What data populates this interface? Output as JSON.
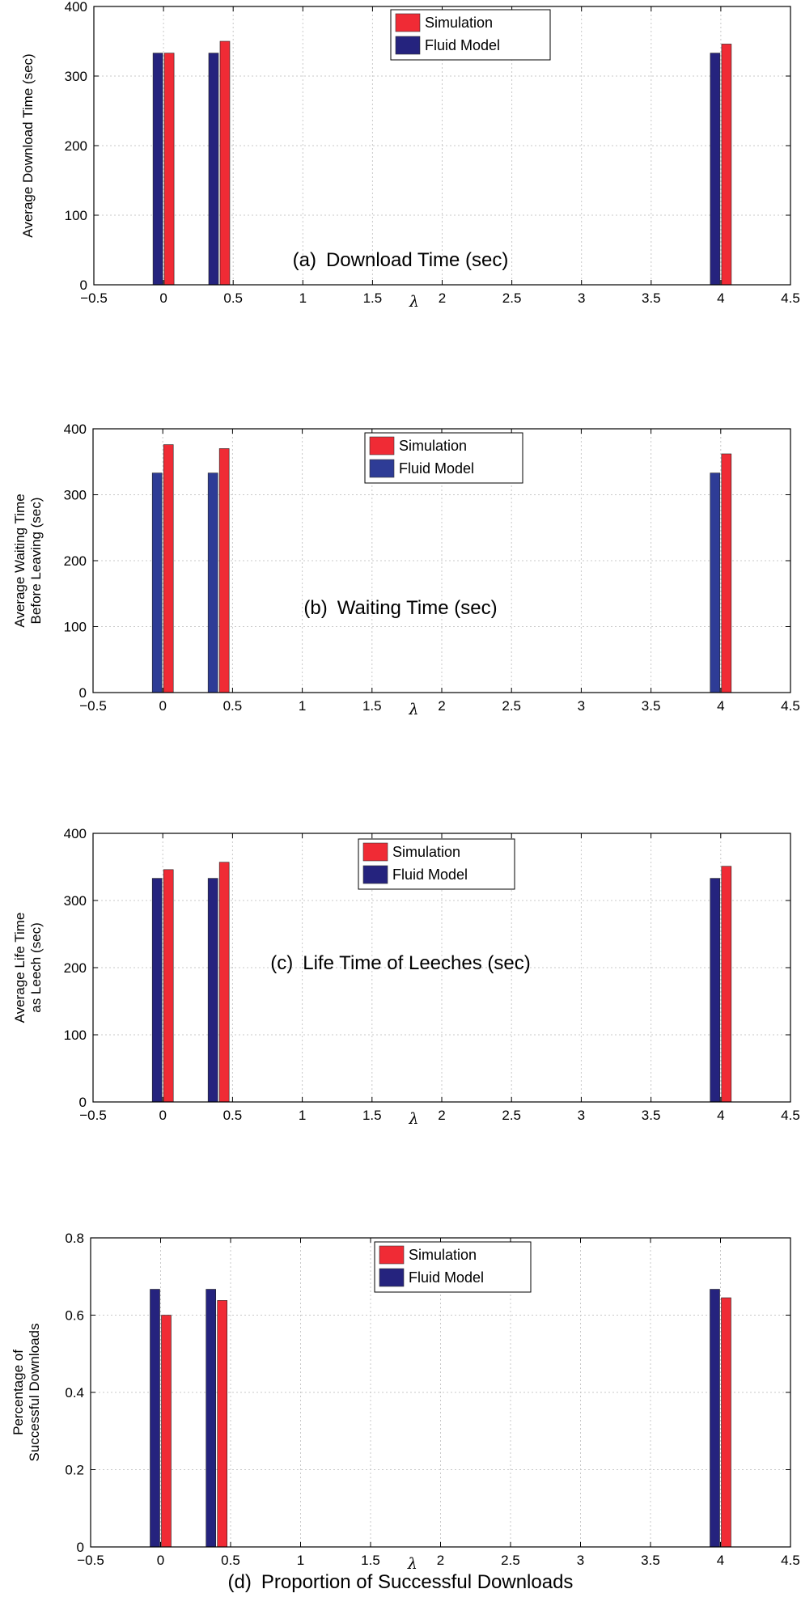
{
  "colors": {
    "simulation": "#f02b35",
    "fluid_model_dark": "#25237e",
    "fluid_model_blue": "#2e3c96",
    "grid": "#c8c8c8"
  },
  "chart_data": [
    {
      "type": "bar",
      "x": [
        0,
        0.4,
        4
      ],
      "xlabel": "λ",
      "ylabel": "Average Download Time (sec)",
      "ylabel_lines": [
        "Average Download Time (sec)"
      ],
      "xlim": [
        -0.5,
        4.5
      ],
      "ylim": [
        0,
        400
      ],
      "xticks": [
        "−0.5",
        "0",
        "0.5",
        "1",
        "1.5",
        "2",
        "2.5",
        "3",
        "3.5",
        "4",
        "4.5"
      ],
      "yticks": [
        "0",
        "100",
        "200",
        "300",
        "400"
      ],
      "grid": true,
      "legend": "top-center",
      "series": [
        {
          "name": "Fluid Model",
          "color_key": "fluid_model_dark",
          "values": [
            333,
            333,
            333
          ]
        },
        {
          "name": "Simulation",
          "color_key": "simulation",
          "values": [
            333,
            350,
            346
          ]
        }
      ],
      "legend_order": [
        "Simulation",
        "Fluid Model"
      ],
      "caption_tag": "(a)",
      "caption": "Download Time (sec)"
    },
    {
      "type": "bar",
      "x": [
        0,
        0.4,
        4
      ],
      "xlabel": "λ",
      "ylabel": "Average Waiting Time Before Leaving (sec)",
      "ylabel_lines": [
        "Average Waiting Time",
        "Before Leaving (sec)"
      ],
      "xlim": [
        -0.5,
        4.5
      ],
      "ylim": [
        0,
        400
      ],
      "xticks": [
        "−0.5",
        "0",
        "0.5",
        "1",
        "1.5",
        "2",
        "2.5",
        "3",
        "3.5",
        "4",
        "4.5"
      ],
      "yticks": [
        "0",
        "100",
        "200",
        "300",
        "400"
      ],
      "grid": true,
      "legend": "top-center",
      "series": [
        {
          "name": "Fluid Model",
          "color_key": "fluid_model_blue",
          "values": [
            333,
            333,
            333
          ]
        },
        {
          "name": "Simulation",
          "color_key": "simulation",
          "values": [
            376,
            370,
            362
          ]
        }
      ],
      "legend_order": [
        "Simulation",
        "Fluid Model"
      ],
      "caption_tag": "(b)",
      "caption": "Waiting Time (sec)"
    },
    {
      "type": "bar",
      "x": [
        0,
        0.4,
        4
      ],
      "xlabel": "λ",
      "ylabel": "Average Life Time as Leech (sec)",
      "ylabel_lines": [
        "Average Life Time",
        "as Leech (sec)"
      ],
      "xlim": [
        -0.5,
        4.5
      ],
      "ylim": [
        0,
        400
      ],
      "xticks": [
        "−0.5",
        "0",
        "0.5",
        "1",
        "1.5",
        "2",
        "2.5",
        "3",
        "3.5",
        "4",
        "4.5"
      ],
      "yticks": [
        "0",
        "100",
        "200",
        "300",
        "400"
      ],
      "grid": true,
      "legend": "top-center",
      "series": [
        {
          "name": "Fluid Model",
          "color_key": "fluid_model_dark",
          "values": [
            333,
            333,
            333
          ]
        },
        {
          "name": "Simulation",
          "color_key": "simulation",
          "values": [
            346,
            357,
            351
          ]
        }
      ],
      "legend_order": [
        "Simulation",
        "Fluid Model"
      ],
      "caption_tag": "(c)",
      "caption": "Life Time of Leeches (sec)"
    },
    {
      "type": "bar",
      "x": [
        0,
        0.4,
        4
      ],
      "xlabel": "λ",
      "ylabel": "Percentage of Successful Downloads",
      "ylabel_lines": [
        "Percentage of",
        "Successful Downloads"
      ],
      "xlim": [
        -0.5,
        4.5
      ],
      "ylim": [
        0,
        0.8
      ],
      "xticks": [
        "−0.5",
        "0",
        "0.5",
        "1",
        "1.5",
        "2",
        "2.5",
        "3",
        "3.5",
        "4",
        "4.5"
      ],
      "yticks": [
        "0",
        "0.2",
        "0.4",
        "0.6",
        "0.8"
      ],
      "grid": true,
      "legend": "top-center",
      "series": [
        {
          "name": "Fluid Model",
          "color_key": "fluid_model_dark",
          "values": [
            0.667,
            0.667,
            0.667
          ]
        },
        {
          "name": "Simulation",
          "color_key": "simulation",
          "values": [
            0.6,
            0.638,
            0.645
          ]
        }
      ],
      "legend_order": [
        "Simulation",
        "Fluid Model"
      ],
      "caption_tag": "(d)",
      "caption": "Proportion of Successful Downloads"
    }
  ]
}
